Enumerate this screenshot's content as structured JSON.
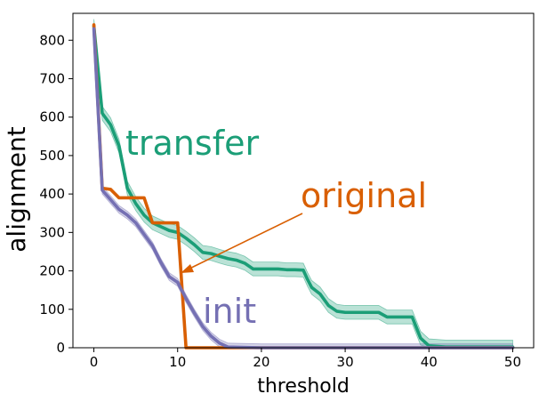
{
  "chart_data": {
    "type": "line",
    "xlabel": "threshold",
    "ylabel": "alignment",
    "xlim": [
      -2.5,
      52.5
    ],
    "ylim": [
      0,
      870
    ],
    "xticks": [
      0,
      10,
      20,
      30,
      40,
      50
    ],
    "yticks": [
      0,
      100,
      200,
      300,
      400,
      500,
      600,
      700,
      800
    ],
    "grid": false,
    "legend": "none",
    "series": [
      {
        "name": "transfer",
        "color": "#1b9e77",
        "band": 18,
        "points": [
          [
            0,
            837
          ],
          [
            1,
            610
          ],
          [
            2,
            580
          ],
          [
            3,
            525
          ],
          [
            4,
            415
          ],
          [
            5,
            375
          ],
          [
            6,
            345
          ],
          [
            7,
            325
          ],
          [
            8,
            315
          ],
          [
            9,
            305
          ],
          [
            10,
            300
          ],
          [
            11,
            285
          ],
          [
            12,
            268
          ],
          [
            13,
            248
          ],
          [
            14,
            245
          ],
          [
            15,
            238
          ],
          [
            16,
            232
          ],
          [
            17,
            228
          ],
          [
            18,
            220
          ],
          [
            19,
            205
          ],
          [
            20,
            205
          ],
          [
            21,
            205
          ],
          [
            22,
            205
          ],
          [
            23,
            203
          ],
          [
            24,
            203
          ],
          [
            25,
            202
          ],
          [
            25.5,
            178
          ],
          [
            26,
            157
          ],
          [
            27,
            140
          ],
          [
            28,
            110
          ],
          [
            29,
            95
          ],
          [
            30,
            92
          ],
          [
            31,
            92
          ],
          [
            32,
            92
          ],
          [
            33,
            92
          ],
          [
            34,
            92
          ],
          [
            35,
            80
          ],
          [
            36,
            80
          ],
          [
            37,
            80
          ],
          [
            38,
            80
          ],
          [
            39,
            25
          ],
          [
            40,
            5
          ],
          [
            42,
            2
          ],
          [
            45,
            2
          ],
          [
            50,
            2
          ]
        ]
      },
      {
        "name": "original",
        "color": "#d95f02",
        "band": 0,
        "points": [
          [
            0,
            840
          ],
          [
            1,
            415
          ],
          [
            2,
            412
          ],
          [
            3,
            390
          ],
          [
            4,
            390
          ],
          [
            5,
            390
          ],
          [
            6,
            390
          ],
          [
            7,
            325
          ],
          [
            8,
            325
          ],
          [
            9,
            325
          ],
          [
            10,
            325
          ],
          [
            11,
            0
          ],
          [
            50,
            0
          ]
        ]
      },
      {
        "name": "init",
        "color": "#7570b3",
        "band": 10,
        "points": [
          [
            0,
            830
          ],
          [
            1,
            410
          ],
          [
            2,
            385
          ],
          [
            3,
            360
          ],
          [
            4,
            345
          ],
          [
            5,
            325
          ],
          [
            6,
            295
          ],
          [
            7,
            265
          ],
          [
            8,
            222
          ],
          [
            9,
            185
          ],
          [
            10,
            170
          ],
          [
            11,
            128
          ],
          [
            12,
            90
          ],
          [
            13,
            55
          ],
          [
            14,
            30
          ],
          [
            15,
            12
          ],
          [
            16,
            2
          ],
          [
            20,
            0
          ],
          [
            50,
            0
          ]
        ]
      }
    ],
    "annotations": [
      {
        "text": "transfer",
        "color": "#1b9e77"
      },
      {
        "text": "original",
        "color": "#d95f02"
      },
      {
        "text": "init",
        "color": "#7570b3"
      }
    ]
  }
}
